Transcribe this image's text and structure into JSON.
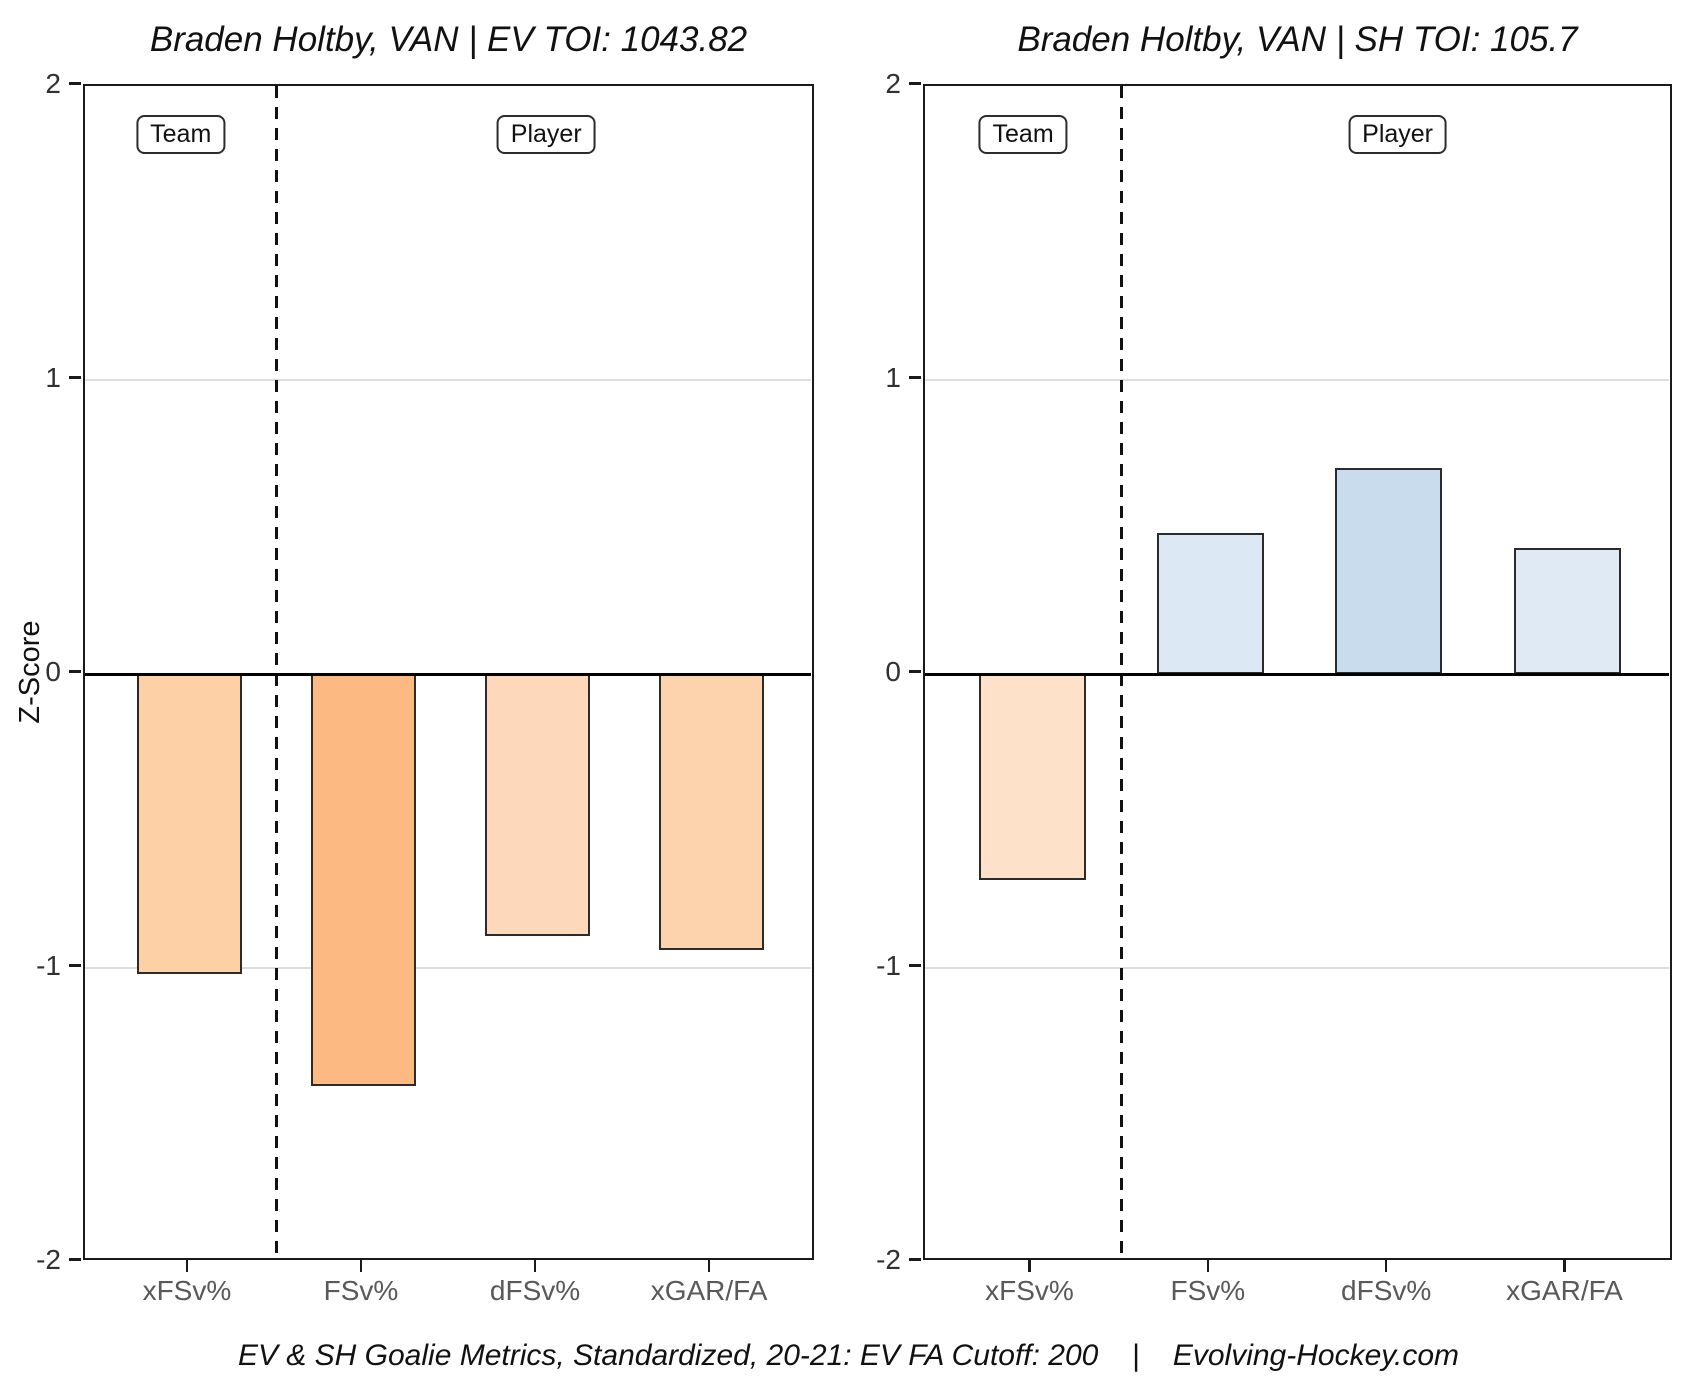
{
  "caption": "EV & SH Goalie Metrics, Standardized, 20-21: EV FA Cutoff: 200    |    Evolving-Hockey.com",
  "chart_data": [
    {
      "type": "bar",
      "title": "Braden Holtby, VAN | EV TOI: 1043.82",
      "ylabel": "Z-Score",
      "ylim": [
        -2,
        2
      ],
      "yticks": [
        2,
        1,
        0,
        -1,
        -2
      ],
      "grid": "light horizontal gridlines at 1 and -1, solid black zero line",
      "legend_position": "none",
      "categories": [
        "xFSv%",
        "FSv%",
        "dFSv%",
        "xGAR/FA"
      ],
      "values": [
        -1.02,
        -1.4,
        -0.89,
        -0.94
      ],
      "bar_colors": [
        "#fdd0a5",
        "#fcba82",
        "#fed8ba",
        "#fdd3ae"
      ],
      "section_labels": [
        {
          "label": "Team",
          "x": 0.95,
          "y": 1.84
        },
        {
          "label": "Player",
          "x": 3.05,
          "y": 1.84
        }
      ],
      "divider_x": 1.5
    },
    {
      "type": "bar",
      "title": "Braden Holtby, VAN | SH TOI: 105.7",
      "ylabel": "",
      "ylim": [
        -2,
        2
      ],
      "yticks": [
        2,
        1,
        0,
        -1,
        -2
      ],
      "grid": "light horizontal gridlines at 1 and -1, solid black zero line",
      "legend_position": "none",
      "categories": [
        "xFSv%",
        "FSv%",
        "dFSv%",
        "xGAR/FA"
      ],
      "values": [
        -0.7,
        0.48,
        0.7,
        0.43
      ],
      "bar_colors": [
        "#fee1c9",
        "#dce8f3",
        "#c9dcee",
        "#e0eaf4"
      ],
      "section_labels": [
        {
          "label": "Team",
          "x": 0.95,
          "y": 1.84
        },
        {
          "label": "Player",
          "x": 3.05,
          "y": 1.84
        }
      ],
      "divider_x": 1.5
    }
  ]
}
